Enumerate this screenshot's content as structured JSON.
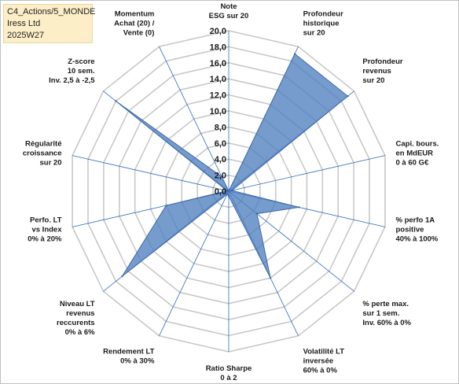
{
  "header": {
    "line1": "C4_Actions/5_MONDE",
    "line2": "Iress Ltd",
    "line3": "2025W27"
  },
  "chart_data": {
    "type": "radar",
    "rlim": [
      0,
      20
    ],
    "tick_labels": [
      "0,0",
      "2,0",
      "4,0",
      "6,0",
      "8,0",
      "10,0",
      "12,0",
      "14,0",
      "16,0",
      "18,0",
      "20,0"
    ],
    "axes": [
      {
        "label": [
          "Note",
          "ESG sur 20"
        ],
        "value": 0
      },
      {
        "label": [
          "Profondeur",
          "historique",
          "sur 20"
        ],
        "value": 19
      },
      {
        "label": [
          "Profondeur",
          "revenus",
          "sur 20"
        ],
        "value": 19
      },
      {
        "label": [
          "Capi. bours.",
          "en MdEUR",
          "0 à 60 G€"
        ],
        "value": 0.4
      },
      {
        "label": [
          "% perfo 1A",
          "positive",
          "40% à 100%"
        ],
        "value": 9
      },
      {
        "label": [
          "% perte max.",
          "sur 1 sem.",
          "Inv. 60% à 0%"
        ],
        "value": 4.5
      },
      {
        "label": [
          "Volatilité LT",
          "inversée",
          "60% à 0%"
        ],
        "value": 12
      },
      {
        "label": [
          "Ratio Sharpe",
          "0 à 2"
        ],
        "value": 0.6
      },
      {
        "label": [
          "Rendement LT",
          "0% à 30%"
        ],
        "value": 0.4
      },
      {
        "label": [
          "Niveau LT",
          "revenus",
          "reccurents",
          "0% à 6%"
        ],
        "value": 17
      },
      {
        "label": [
          "Perfo. LT",
          "vs Index",
          "0% à 20%"
        ],
        "value": 8
      },
      {
        "label": [
          "Régularité",
          "croissance",
          "sur 20"
        ],
        "value": 0.2
      },
      {
        "label": [
          "Z-score",
          "10 sem.",
          "Inv. 2,5 à -2,5"
        ],
        "value": 18
      },
      {
        "label": [
          "Momentum",
          "Achat (20) /",
          "Vente (0)"
        ],
        "value": 2
      }
    ],
    "series_color": "#4f7fbf",
    "grid": true
  }
}
